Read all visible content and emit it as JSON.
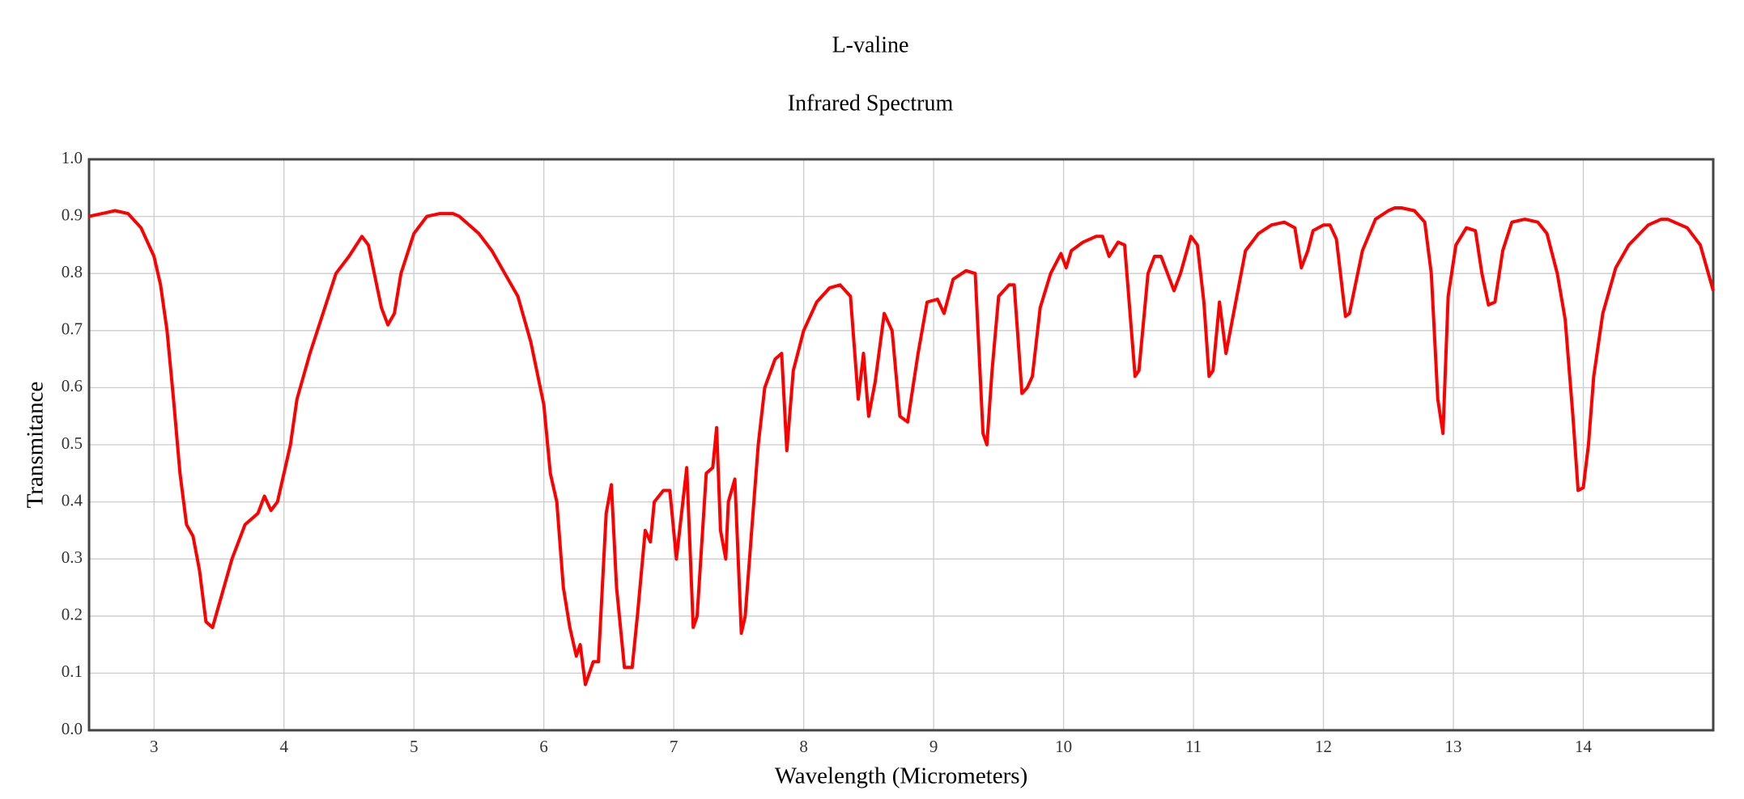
{
  "chart_data": {
    "type": "line",
    "title": "L-valine",
    "subtitle": "Infrared Spectrum",
    "x_label": "Wavelength (Micrometers)",
    "y_label": "Transmitance",
    "xlim": [
      2.5,
      15
    ],
    "xticks": [
      3,
      4,
      5,
      6,
      7,
      8,
      9,
      10,
      11,
      12,
      13,
      14
    ],
    "ylim": [
      0,
      1
    ],
    "yticks": [
      {
        "value": 0,
        "label": "0.0"
      },
      0.1,
      0.2,
      0.3,
      0.4,
      0.5,
      0.6,
      0.7,
      0.8,
      0.9,
      {
        "value": 1,
        "label": "1.0"
      }
    ],
    "grid": true,
    "x": [
      2.5,
      2.6,
      2.7,
      2.8,
      2.9,
      3.0,
      3.05,
      3.1,
      3.15,
      3.2,
      3.25,
      3.3,
      3.35,
      3.4,
      3.45,
      3.5,
      3.6,
      3.7,
      3.8,
      3.85,
      3.9,
      3.95,
      4.05,
      4.1,
      4.2,
      4.3,
      4.4,
      4.5,
      4.6,
      4.65,
      4.75,
      4.8,
      4.85,
      4.9,
      5.0,
      5.1,
      5.2,
      5.3,
      5.35,
      5.5,
      5.6,
      5.7,
      5.8,
      5.9,
      6.0,
      6.05,
      6.1,
      6.15,
      6.2,
      6.25,
      6.28,
      6.32,
      6.38,
      6.42,
      6.48,
      6.52,
      6.56,
      6.62,
      6.68,
      6.72,
      6.78,
      6.82,
      6.85,
      6.92,
      6.97,
      7.02,
      7.1,
      7.15,
      7.18,
      7.25,
      7.3,
      7.33,
      7.36,
      7.4,
      7.42,
      7.47,
      7.52,
      7.55,
      7.6,
      7.65,
      7.7,
      7.78,
      7.83,
      7.87,
      7.92,
      8.0,
      8.1,
      8.2,
      8.28,
      8.36,
      8.42,
      8.46,
      8.5,
      8.55,
      8.62,
      8.68,
      8.74,
      8.8,
      8.88,
      8.95,
      9.03,
      9.08,
      9.15,
      9.25,
      9.32,
      9.38,
      9.41,
      9.45,
      9.5,
      9.58,
      9.62,
      9.68,
      9.72,
      9.76,
      9.82,
      9.9,
      9.98,
      10.02,
      10.06,
      10.15,
      10.25,
      10.3,
      10.35,
      10.42,
      10.47,
      10.55,
      10.58,
      10.65,
      10.7,
      10.75,
      10.8,
      10.85,
      10.9,
      10.98,
      11.03,
      11.08,
      11.12,
      11.15,
      11.2,
      11.25,
      11.3,
      11.4,
      11.5,
      11.6,
      11.7,
      11.78,
      11.83,
      11.88,
      11.92,
      12.0,
      12.05,
      12.1,
      12.17,
      12.2,
      12.3,
      12.4,
      12.5,
      12.55,
      12.6,
      12.7,
      12.78,
      12.83,
      12.88,
      12.92,
      12.96,
      13.02,
      13.1,
      13.17,
      13.22,
      13.27,
      13.32,
      13.38,
      13.45,
      13.55,
      13.65,
      13.72,
      13.8,
      13.86,
      13.92,
      13.96,
      14.0,
      14.04,
      14.08,
      14.15,
      14.25,
      14.35,
      14.5,
      14.6,
      14.65,
      14.7,
      14.8,
      14.9,
      15.0
    ],
    "series": [
      {
        "color": "#ff0000",
        "values": [
          0.9,
          0.905,
          0.91,
          0.905,
          0.88,
          0.83,
          0.78,
          0.7,
          0.58,
          0.45,
          0.36,
          0.34,
          0.28,
          0.19,
          0.18,
          0.22,
          0.3,
          0.36,
          0.38,
          0.41,
          0.385,
          0.4,
          0.5,
          0.58,
          0.66,
          0.73,
          0.8,
          0.83,
          0.865,
          0.85,
          0.74,
          0.71,
          0.73,
          0.8,
          0.87,
          0.9,
          0.905,
          0.905,
          0.9,
          0.87,
          0.84,
          0.8,
          0.76,
          0.68,
          0.57,
          0.45,
          0.4,
          0.25,
          0.18,
          0.13,
          0.15,
          0.08,
          0.12,
          0.12,
          0.38,
          0.43,
          0.25,
          0.11,
          0.11,
          0.2,
          0.35,
          0.33,
          0.4,
          0.42,
          0.42,
          0.3,
          0.46,
          0.18,
          0.2,
          0.45,
          0.46,
          0.53,
          0.35,
          0.3,
          0.4,
          0.44,
          0.17,
          0.2,
          0.35,
          0.5,
          0.6,
          0.65,
          0.66,
          0.49,
          0.63,
          0.7,
          0.75,
          0.775,
          0.78,
          0.76,
          0.58,
          0.66,
          0.55,
          0.61,
          0.73,
          0.7,
          0.55,
          0.54,
          0.66,
          0.75,
          0.755,
          0.73,
          0.79,
          0.805,
          0.8,
          0.52,
          0.5,
          0.63,
          0.76,
          0.78,
          0.78,
          0.59,
          0.6,
          0.62,
          0.74,
          0.8,
          0.835,
          0.81,
          0.84,
          0.855,
          0.865,
          0.865,
          0.83,
          0.855,
          0.85,
          0.62,
          0.63,
          0.8,
          0.83,
          0.83,
          0.8,
          0.77,
          0.8,
          0.865,
          0.85,
          0.75,
          0.62,
          0.63,
          0.75,
          0.66,
          0.72,
          0.84,
          0.87,
          0.885,
          0.89,
          0.88,
          0.81,
          0.84,
          0.875,
          0.885,
          0.885,
          0.86,
          0.725,
          0.73,
          0.84,
          0.895,
          0.91,
          0.915,
          0.915,
          0.91,
          0.89,
          0.8,
          0.58,
          0.52,
          0.76,
          0.85,
          0.88,
          0.875,
          0.8,
          0.745,
          0.75,
          0.84,
          0.89,
          0.895,
          0.89,
          0.87,
          0.8,
          0.72,
          0.55,
          0.42,
          0.425,
          0.5,
          0.62,
          0.73,
          0.81,
          0.85,
          0.885,
          0.895,
          0.895,
          0.89,
          0.88,
          0.85,
          0.77
        ]
      }
    ]
  }
}
